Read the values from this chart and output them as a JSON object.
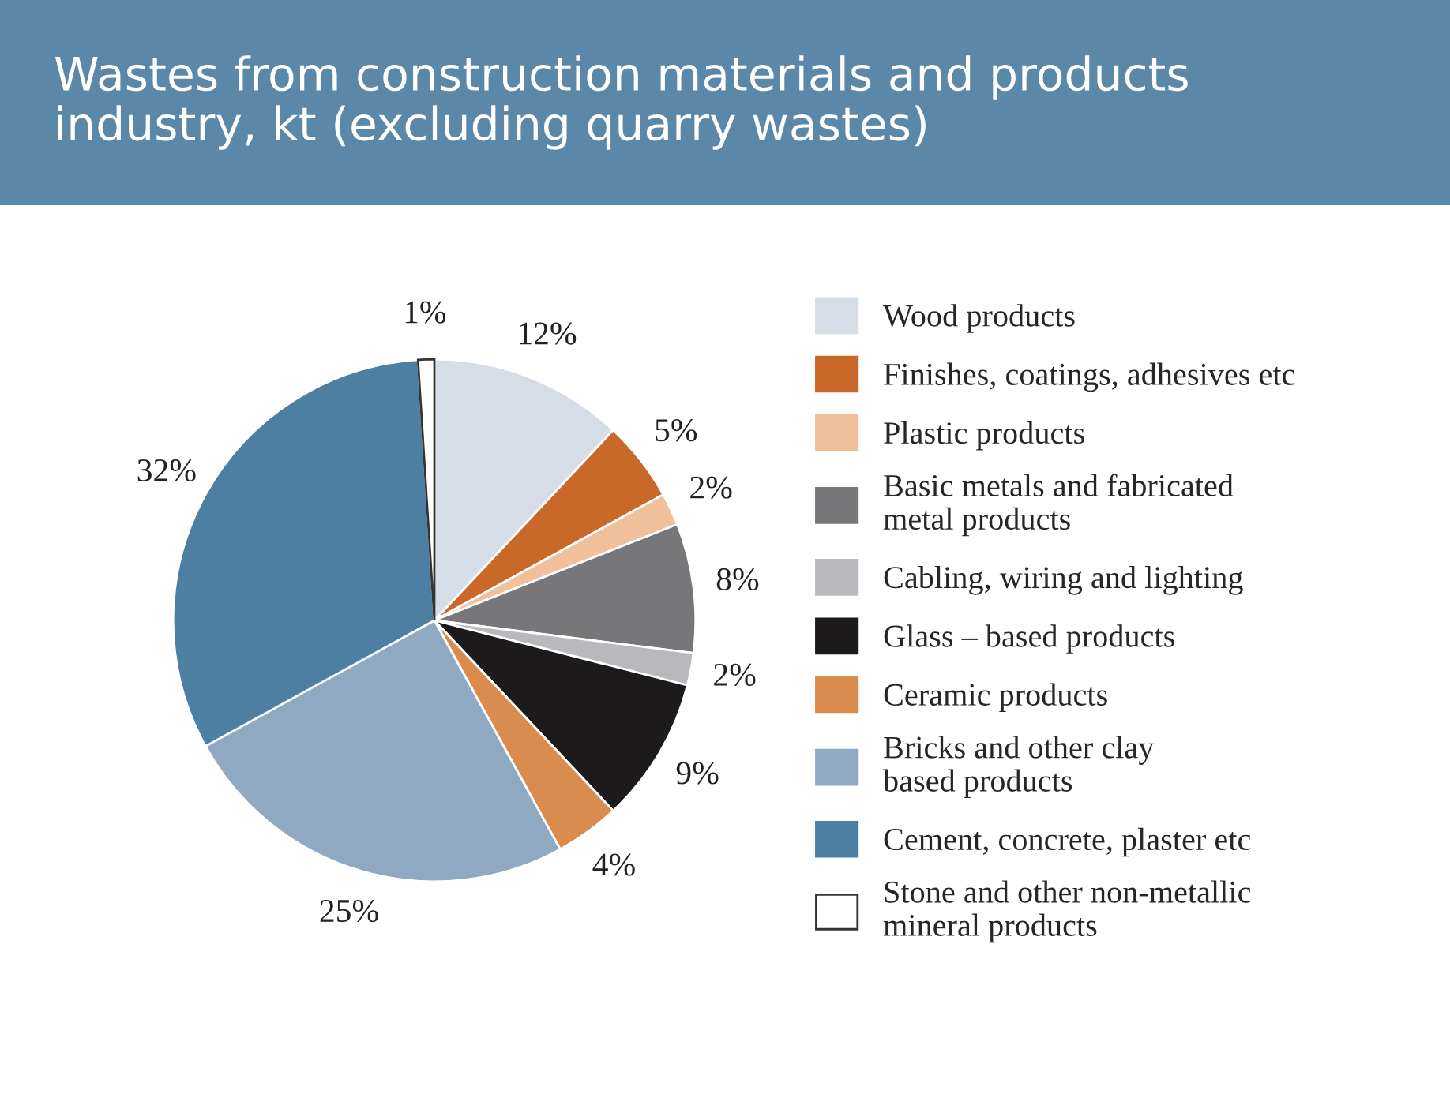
{
  "chart_data": {
    "type": "pie",
    "title": "Wastes from construction materials and products\nindustry, kt (excluding quarry wastes)",
    "categories": [
      "Wood products",
      "Finishes, coatings, adhesives etc",
      "Plastic products",
      "Basic metals and fabricated\nmetal products",
      "Cabling, wiring and lighting",
      "Glass – based products",
      "Ceramic products",
      "Bricks and other clay\nbased products",
      "Cement, concrete, plaster etc",
      "Stone and other non-metallic\nmineral products"
    ],
    "values": [
      12,
      5,
      2,
      8,
      2,
      9,
      4,
      25,
      32,
      1
    ],
    "value_labels": [
      "12%",
      "5%",
      "2%",
      "8%",
      "2%",
      "9%",
      "4%",
      "25%",
      "32%",
      "1%"
    ],
    "colors": [
      "#d6dde6",
      "#c8692a",
      "#f0c09a",
      "#77777a",
      "#b9b9bd",
      "#1c1a1b",
      "#d98c4e",
      "#8fa9c3",
      "#4d7fa3",
      "#ffffff"
    ],
    "legend": "right"
  }
}
